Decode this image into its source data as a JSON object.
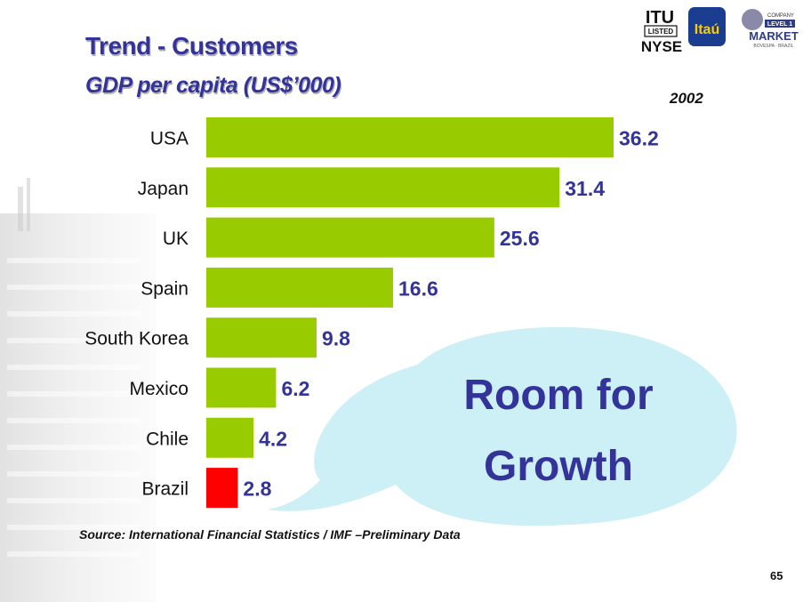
{
  "slide": {
    "title": "Trend - Customers",
    "subtitle": "GDP per capita (US$’000)",
    "year": "2002",
    "source": "Source: International Financial Statistics / IMF –Preliminary Data",
    "page_number": "65",
    "callout": {
      "line1": "Room for",
      "line2": "Growth"
    }
  },
  "logos": {
    "itu": "ITU",
    "listed": "LISTED",
    "nyse": "NYSE",
    "itau": "Itaú",
    "company": "COMPANY",
    "level": "LEVEL 1",
    "market": "MARKET",
    "bovespa": "BOVESPA · BRAZIL"
  },
  "colors": {
    "title": "#333399",
    "bar": "#99cc00",
    "highlight_bar": "#ff0000",
    "value_label": "#333399",
    "callout_fill": "#ccf0f5"
  },
  "chart_data": {
    "type": "bar",
    "orientation": "horizontal",
    "title": "GDP per capita (US$’000)",
    "categories": [
      "USA",
      "Japan",
      "UK",
      "Spain",
      "South Korea",
      "Mexico",
      "Chile",
      "Brazil"
    ],
    "values": [
      36.2,
      31.4,
      25.6,
      16.6,
      9.8,
      6.2,
      4.2,
      2.8
    ],
    "value_labels": [
      "36.2",
      "31.4",
      "25.6",
      "16.6",
      "9.8",
      "6.2",
      "4.2",
      "2.8"
    ],
    "highlight": "Brazil",
    "xlim": [
      0,
      36.2
    ],
    "grid": false,
    "legend": "none"
  }
}
